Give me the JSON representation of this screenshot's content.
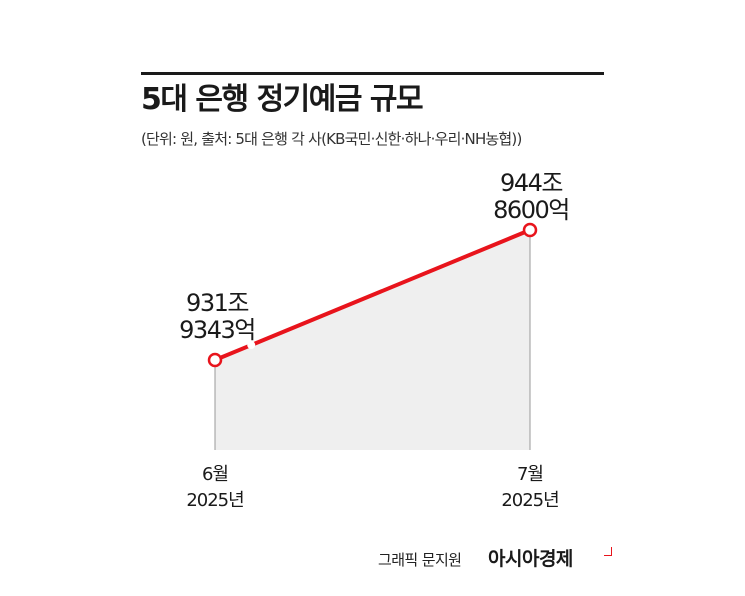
{
  "title": "5대 은행 정기예금 규모",
  "subtitle": "(단위: 원, 출처: 5대 은행 각 사(KB국민·신한·하나·우리·NH농협))",
  "credit": "그래픽 문지원",
  "brand": "아시아경제",
  "colors": {
    "line": "#e8141c",
    "fill": "#efefef",
    "axis": "#9a9a9a",
    "text": "#1a1a1a"
  },
  "chart_data": {
    "type": "area",
    "categories": [
      "6월\n2025년",
      "7월\n2025년"
    ],
    "x_month_labels": [
      "6월",
      "7월"
    ],
    "x_year_labels": [
      "2025년",
      "2025년"
    ],
    "values": [
      9319343,
      9448600
    ],
    "value_unit": "억원",
    "data_labels": [
      [
        "931조",
        "9343억"
      ],
      [
        "944조",
        "8600억"
      ]
    ],
    "grid": false,
    "legend": "none"
  }
}
